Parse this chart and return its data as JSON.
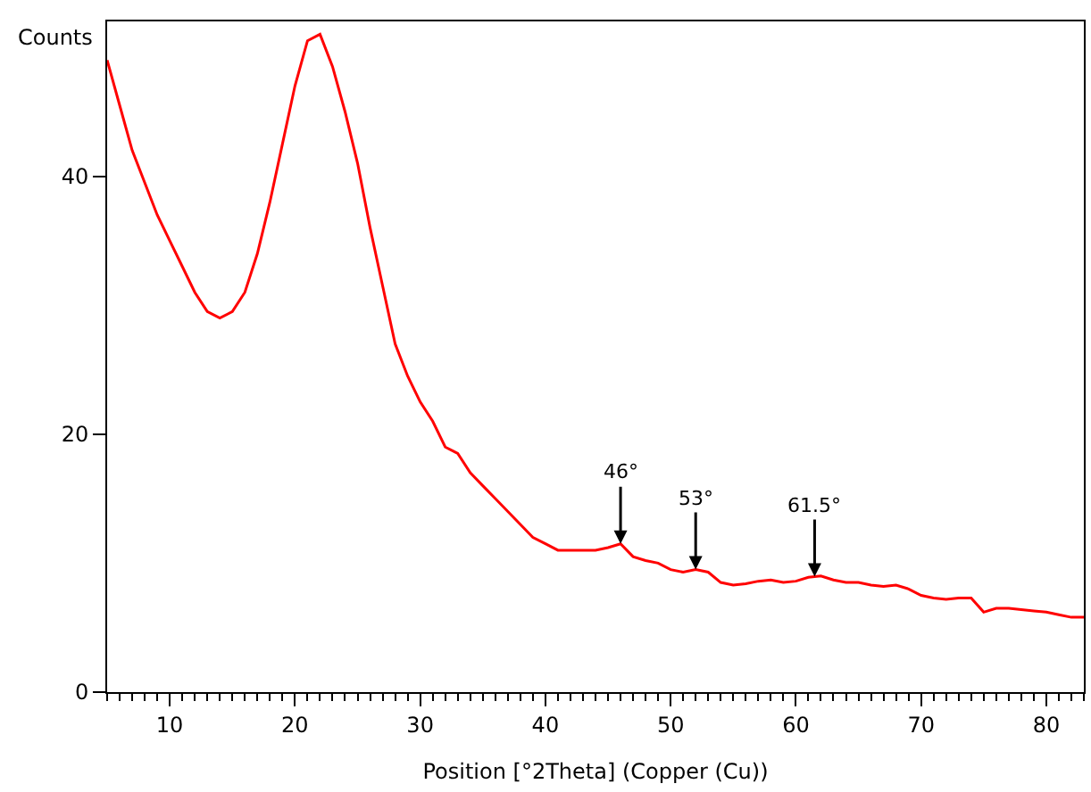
{
  "chart_data": {
    "type": "line",
    "xlabel": "Position [°2Theta] (Copper (Cu))",
    "ylabel": "Counts",
    "x": [
      5,
      6,
      7,
      8,
      9,
      10,
      11,
      12,
      13,
      14,
      15,
      16,
      17,
      18,
      19,
      20,
      21,
      22,
      23,
      24,
      25,
      26,
      27,
      28,
      29,
      30,
      31,
      32,
      33,
      34,
      35,
      36,
      37,
      38,
      39,
      40,
      41,
      42,
      43,
      44,
      45,
      46,
      47,
      48,
      49,
      50,
      51,
      52,
      53,
      54,
      55,
      56,
      57,
      58,
      59,
      60,
      61,
      62,
      63,
      64,
      65,
      66,
      67,
      68,
      69,
      70,
      71,
      72,
      73,
      74,
      75,
      76,
      77,
      78,
      79,
      80,
      81,
      82,
      83
    ],
    "series": [
      {
        "color": "#ff0000",
        "values": [
          49,
          45.5,
          42,
          39.5,
          37,
          35,
          33,
          31,
          29.5,
          29,
          29.5,
          31,
          34,
          38,
          42.5,
          47,
          50.5,
          51,
          48.5,
          45,
          41,
          36,
          31.5,
          27,
          24.5,
          22.5,
          21,
          19,
          18.5,
          17,
          16,
          15,
          14,
          13,
          12,
          11.5,
          11,
          11,
          11,
          11,
          11.2,
          11.5,
          10.5,
          10.2,
          10,
          9.5,
          9.3,
          9.5,
          9.3,
          8.5,
          8.3,
          8.4,
          8.6,
          8.7,
          8.5,
          8.6,
          8.9,
          9,
          8.7,
          8.5,
          8.5,
          8.3,
          8.2,
          8.3,
          8,
          7.5,
          7.3,
          7.2,
          7.3,
          7.3,
          6.2,
          6.5,
          6.5,
          6.4,
          6.3,
          6.2,
          6,
          5.8,
          5.8
        ]
      }
    ],
    "xlim": [
      5,
      83
    ],
    "xticks": [
      10,
      20,
      30,
      40,
      50,
      60,
      70,
      80
    ],
    "ylim": [
      0,
      52
    ],
    "yticks": [
      0,
      20,
      40
    ],
    "annotations": [
      {
        "text": "46°",
        "x": 46,
        "y": 11.5
      },
      {
        "text": "53°",
        "x": 52,
        "y": 9.5
      },
      {
        "text": "61.5°",
        "x": 61.5,
        "y": 8.95
      }
    ],
    "marker": "none",
    "line_style": "solid"
  }
}
